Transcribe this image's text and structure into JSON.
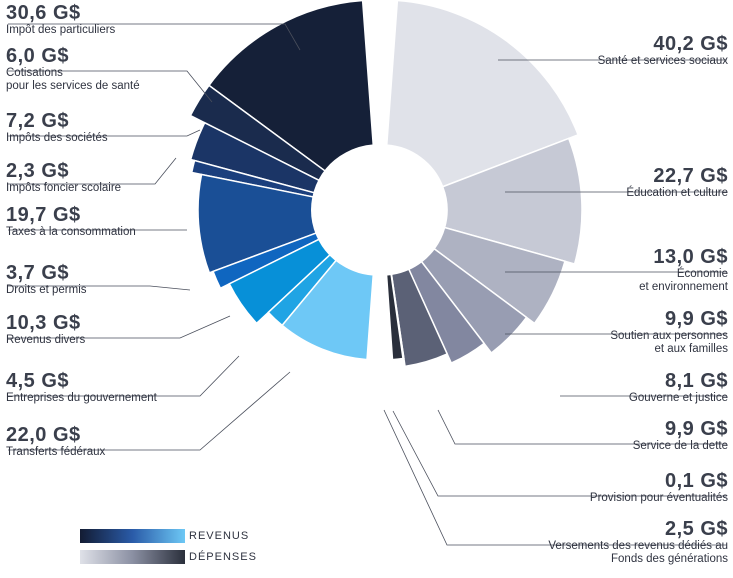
{
  "chart_data": {
    "type": "pie",
    "style": "donut",
    "legend": {
      "placement": "bottom-left",
      "items": [
        {
          "label": "REVENUS",
          "gradient": [
            "#131c33",
            "#2a5ba8",
            "#6dc8f5"
          ]
        },
        {
          "label": "DÉPENSES",
          "gradient": [
            "#dfe1e8",
            "#8b90a3",
            "#2a2f3b"
          ]
        }
      ]
    },
    "series": [
      {
        "name": "REVENUS",
        "slices": [
          {
            "value_label": "30,6 G$",
            "label": "Impôt des particuliers",
            "value": 30.6,
            "color": "#152038"
          },
          {
            "value_label": "6,0 G$",
            "label": "Cotisations\npour les services de santé",
            "value": 6.0,
            "color": "#1a2b4d"
          },
          {
            "value_label": "7,2 G$",
            "label": "Impôts des sociétés",
            "value": 7.2,
            "color": "#1b3566"
          },
          {
            "value_label": "2,3 G$",
            "label": "Impôts foncier scolaire",
            "value": 2.3,
            "color": "#1b3f7d"
          },
          {
            "value_label": "19,7 G$",
            "label": "Taxes à la consommation",
            "value": 19.7,
            "color": "#1a4f96"
          },
          {
            "value_label": "3,7 G$",
            "label": "Droits et permis",
            "value": 3.7,
            "color": "#0f66c0"
          },
          {
            "value_label": "10,3 G$",
            "label": "Revenus divers",
            "value": 10.3,
            "color": "#0790d8"
          },
          {
            "value_label": "4,5 G$",
            "label": "Entreprises du gouvernement",
            "value": 4.5,
            "color": "#20a4e4"
          },
          {
            "value_label": "22,0 G$",
            "label": "Transferts fédéraux",
            "value": 22.0,
            "color": "#6ec8f6"
          }
        ]
      },
      {
        "name": "DÉPENSES",
        "slices": [
          {
            "value_label": "40,2 G$",
            "label": "Santé et services sociaux",
            "value": 40.2,
            "color": "#e0e2e9"
          },
          {
            "value_label": "22,7 G$",
            "label": "Éducation et culture",
            "value": 22.7,
            "color": "#c6c9d5"
          },
          {
            "value_label": "13,0 G$",
            "label": "Économie\net environnement",
            "value": 13.0,
            "color": "#aeb2c2"
          },
          {
            "value_label": "9,9 G$",
            "label": "Soutien aux personnes\net aux familles",
            "value": 9.9,
            "color": "#989db2"
          },
          {
            "value_label": "8,1 G$",
            "label": "Gouverne et justice",
            "value": 8.1,
            "color": "#8287a0"
          },
          {
            "value_label": "9,9 G$",
            "label": "Service de la dette",
            "value": 9.9,
            "color": "#5b6176"
          },
          {
            "value_label": "0,1 G$",
            "label": "Provision pour éventualités",
            "value": 0.1,
            "color": "#3e4353"
          },
          {
            "value_label": "2,5 G$",
            "label": "Versements des revenus dédiés au\nFonds des générations",
            "value": 2.5,
            "color": "#2a2f3b"
          }
        ]
      }
    ]
  }
}
